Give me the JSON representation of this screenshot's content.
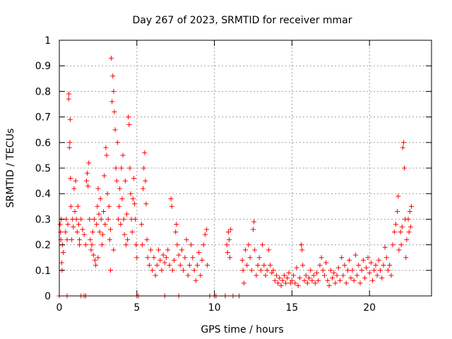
{
  "chart_data": {
    "type": "scatter",
    "title": "Day 267 of 2023, SRMTID for receiver mmar",
    "xlabel": "GPS time / hours",
    "ylabel": "SRMTID / TECUs",
    "xlim": [
      0,
      24
    ],
    "ylim": [
      0,
      1
    ],
    "xticks": [
      0,
      5,
      10,
      15,
      20
    ],
    "xtick_labels": [
      "0",
      "5",
      "10",
      "15",
      "20"
    ],
    "yticks": [
      0,
      0.1,
      0.2,
      0.3,
      0.4,
      0.5,
      0.6,
      0.7,
      0.8,
      0.9,
      1
    ],
    "ytick_labels": [
      "0",
      "0.1",
      "0.2",
      "0.3",
      "0.4",
      "0.5",
      "0.6",
      "0.7",
      "0.8",
      "0.9",
      "1"
    ],
    "grid": true,
    "marker": "+",
    "color": "#ff0000",
    "series": [
      {
        "name": "SRMTID",
        "points": [
          [
            0.05,
            0.28
          ],
          [
            0.08,
            0.25
          ],
          [
            0.1,
            0.22
          ],
          [
            0.12,
            0.3
          ],
          [
            0.15,
            0.13
          ],
          [
            0.18,
            0.1
          ],
          [
            0.2,
            0.2
          ],
          [
            0.25,
            0.17
          ],
          [
            0.4,
            0.25
          ],
          [
            0.45,
            0.3
          ],
          [
            0.5,
            0.22
          ],
          [
            0.55,
            0.28
          ],
          [
            0.6,
            0.77
          ],
          [
            0.62,
            0.79
          ],
          [
            0.65,
            0.58
          ],
          [
            0.68,
            0.6
          ],
          [
            0.7,
            0.69
          ],
          [
            0.72,
            0.46
          ],
          [
            0.75,
            0.35
          ],
          [
            0.8,
            0.22
          ],
          [
            0.85,
            0.3
          ],
          [
            0.9,
            0.27
          ],
          [
            0.95,
            0.42
          ],
          [
            1.0,
            0.33
          ],
          [
            1.05,
            0.45
          ],
          [
            1.1,
            0.3
          ],
          [
            1.15,
            0.25
          ],
          [
            1.2,
            0.35
          ],
          [
            1.25,
            0.28
          ],
          [
            1.3,
            0.22
          ],
          [
            1.4,
            0.3
          ],
          [
            1.5,
            0.26
          ],
          [
            1.6,
            0.24
          ],
          [
            1.7,
            0.2
          ],
          [
            1.75,
            0.45
          ],
          [
            1.8,
            0.48
          ],
          [
            1.85,
            0.43
          ],
          [
            1.9,
            0.52
          ],
          [
            1.95,
            0.3
          ],
          [
            2.0,
            0.22
          ],
          [
            2.05,
            0.18
          ],
          [
            2.1,
            0.2
          ],
          [
            2.15,
            0.25
          ],
          [
            2.2,
            0.16
          ],
          [
            2.25,
            0.3
          ],
          [
            2.3,
            0.14
          ],
          [
            2.35,
            0.12
          ],
          [
            2.4,
            0.28
          ],
          [
            2.45,
            0.35
          ],
          [
            2.5,
            0.42
          ],
          [
            2.55,
            0.32
          ],
          [
            2.6,
            0.25
          ],
          [
            2.65,
            0.38
          ],
          [
            2.7,
            0.3
          ],
          [
            2.75,
            0.2
          ],
          [
            2.8,
            0.24
          ],
          [
            2.85,
            0.33
          ],
          [
            2.9,
            0.47
          ],
          [
            2.95,
            0.28
          ],
          [
            3.0,
            0.58
          ],
          [
            3.05,
            0.55
          ],
          [
            3.1,
            0.4
          ],
          [
            3.15,
            0.3
          ],
          [
            3.2,
            0.35
          ],
          [
            3.25,
            0.22
          ],
          [
            3.3,
            0.26
          ],
          [
            3.35,
            0.93
          ],
          [
            3.4,
            0.76
          ],
          [
            3.45,
            0.86
          ],
          [
            3.5,
            0.8
          ],
          [
            3.55,
            0.72
          ],
          [
            3.6,
            0.65
          ],
          [
            3.65,
            0.5
          ],
          [
            3.7,
            0.45
          ],
          [
            3.75,
            0.6
          ],
          [
            3.8,
            0.3
          ],
          [
            3.85,
            0.35
          ],
          [
            3.9,
            0.42
          ],
          [
            3.95,
            0.28
          ],
          [
            4.0,
            0.5
          ],
          [
            4.05,
            0.38
          ],
          [
            4.1,
            0.55
          ],
          [
            4.15,
            0.3
          ],
          [
            4.2,
            0.24
          ],
          [
            4.25,
            0.45
          ],
          [
            4.3,
            0.2
          ],
          [
            4.35,
            0.32
          ],
          [
            4.4,
            0.22
          ],
          [
            4.45,
            0.7
          ],
          [
            4.5,
            0.67
          ],
          [
            4.55,
            0.5
          ],
          [
            4.6,
            0.4
          ],
          [
            4.65,
            0.3
          ],
          [
            4.7,
            0.25
          ],
          [
            4.75,
            0.38
          ],
          [
            4.8,
            0.46
          ],
          [
            4.85,
            0.36
          ],
          [
            4.9,
            0.3
          ],
          [
            4.95,
            0.2
          ],
          [
            5.0,
            0.15
          ],
          [
            3.3,
            0.1
          ],
          [
            3.5,
            0.18
          ],
          [
            2.5,
            0.15
          ],
          [
            1.3,
            0.2
          ],
          [
            5.3,
            0.28
          ],
          [
            5.35,
            0.2
          ],
          [
            5.4,
            0.42
          ],
          [
            5.45,
            0.5
          ],
          [
            5.5,
            0.56
          ],
          [
            5.55,
            0.45
          ],
          [
            5.6,
            0.36
          ],
          [
            5.65,
            0.22
          ],
          [
            5.7,
            0.15
          ],
          [
            5.8,
            0.12
          ],
          [
            5.9,
            0.18
          ],
          [
            6.0,
            0.1
          ],
          [
            6.1,
            0.15
          ],
          [
            6.2,
            0.08
          ],
          [
            6.3,
            0.12
          ],
          [
            6.4,
            0.18
          ],
          [
            6.5,
            0.14
          ],
          [
            6.6,
            0.1
          ],
          [
            6.7,
            0.16
          ],
          [
            6.8,
            0.13
          ],
          [
            6.9,
            0.15
          ],
          [
            7.0,
            0.18
          ],
          [
            7.1,
            0.12
          ],
          [
            7.2,
            0.38
          ],
          [
            7.25,
            0.35
          ],
          [
            7.3,
            0.1
          ],
          [
            7.4,
            0.14
          ],
          [
            7.5,
            0.25
          ],
          [
            7.55,
            0.28
          ],
          [
            7.6,
            0.2
          ],
          [
            7.7,
            0.16
          ],
          [
            7.8,
            0.12
          ],
          [
            7.9,
            0.18
          ],
          [
            8.0,
            0.1
          ],
          [
            8.1,
            0.15
          ],
          [
            8.2,
            0.22
          ],
          [
            8.3,
            0.08
          ],
          [
            8.4,
            0.12
          ],
          [
            8.5,
            0.2
          ],
          [
            8.6,
            0.15
          ],
          [
            8.7,
            0.1
          ],
          [
            8.8,
            0.06
          ],
          [
            8.9,
            0.12
          ],
          [
            9.0,
            0.17
          ],
          [
            9.1,
            0.08
          ],
          [
            9.2,
            0.14
          ],
          [
            9.3,
            0.2
          ],
          [
            9.4,
            0.24
          ],
          [
            9.5,
            0.26
          ],
          [
            9.55,
            0.12
          ],
          [
            10.8,
            0.2
          ],
          [
            10.85,
            0.17
          ],
          [
            10.9,
            0.25
          ],
          [
            10.95,
            0.22
          ],
          [
            11.0,
            0.15
          ],
          [
            11.05,
            0.26
          ],
          [
            11.8,
            0.14
          ],
          [
            11.85,
            0.1
          ],
          [
            11.9,
            0.05
          ],
          [
            12.0,
            0.18
          ],
          [
            12.1,
            0.12
          ],
          [
            12.2,
            0.2
          ],
          [
            12.3,
            0.15
          ],
          [
            12.4,
            0.1
          ],
          [
            12.5,
            0.26
          ],
          [
            12.55,
            0.29
          ],
          [
            12.6,
            0.18
          ],
          [
            12.7,
            0.08
          ],
          [
            12.8,
            0.12
          ],
          [
            12.9,
            0.15
          ],
          [
            13.0,
            0.1
          ],
          [
            13.1,
            0.2
          ],
          [
            13.2,
            0.12
          ],
          [
            13.3,
            0.08
          ],
          [
            13.4,
            0.1
          ],
          [
            13.5,
            0.18
          ],
          [
            13.6,
            0.12
          ],
          [
            13.7,
            0.09
          ],
          [
            13.8,
            0.1
          ],
          [
            13.9,
            0.06
          ],
          [
            14.0,
            0.08
          ],
          [
            14.1,
            0.05
          ],
          [
            14.2,
            0.07
          ],
          [
            14.3,
            0.04
          ],
          [
            14.4,
            0.06
          ],
          [
            14.5,
            0.08
          ],
          [
            14.6,
            0.05
          ],
          [
            14.7,
            0.07
          ],
          [
            14.8,
            0.09
          ],
          [
            14.9,
            0.05
          ],
          [
            15.0,
            0.06
          ],
          [
            15.1,
            0.08
          ],
          [
            15.2,
            0.05
          ],
          [
            15.3,
            0.11
          ],
          [
            15.4,
            0.04
          ],
          [
            15.5,
            0.07
          ],
          [
            15.6,
            0.2
          ],
          [
            15.65,
            0.18
          ],
          [
            15.7,
            0.12
          ],
          [
            15.8,
            0.06
          ],
          [
            15.9,
            0.08
          ],
          [
            16.0,
            0.05
          ],
          [
            16.1,
            0.07
          ],
          [
            16.2,
            0.1
          ],
          [
            16.3,
            0.06
          ],
          [
            16.4,
            0.08
          ],
          [
            16.5,
            0.05
          ],
          [
            16.6,
            0.09
          ],
          [
            16.7,
            0.06
          ],
          [
            16.8,
            0.12
          ],
          [
            16.9,
            0.15
          ],
          [
            17.0,
            0.1
          ],
          [
            17.1,
            0.08
          ],
          [
            17.2,
            0.13
          ],
          [
            17.3,
            0.06
          ],
          [
            17.4,
            0.04
          ],
          [
            17.5,
            0.1
          ],
          [
            17.6,
            0.07
          ],
          [
            17.7,
            0.09
          ],
          [
            17.8,
            0.05
          ],
          [
            17.9,
            0.08
          ],
          [
            18.0,
            0.11
          ],
          [
            18.1,
            0.06
          ],
          [
            18.2,
            0.15
          ],
          [
            18.3,
            0.08
          ],
          [
            18.4,
            0.12
          ],
          [
            18.5,
            0.05
          ],
          [
            18.6,
            0.1
          ],
          [
            18.7,
            0.14
          ],
          [
            18.8,
            0.07
          ],
          [
            18.9,
            0.1
          ],
          [
            19.0,
            0.06
          ],
          [
            19.1,
            0.16
          ],
          [
            19.2,
            0.08
          ],
          [
            19.3,
            0.12
          ],
          [
            19.4,
            0.05
          ],
          [
            19.5,
            0.1
          ],
          [
            19.6,
            0.14
          ],
          [
            19.7,
            0.07
          ],
          [
            19.8,
            0.11
          ],
          [
            19.9,
            0.15
          ],
          [
            20.0,
            0.09
          ],
          [
            20.1,
            0.13
          ],
          [
            20.2,
            0.06
          ],
          [
            20.3,
            0.1
          ],
          [
            20.4,
            0.12
          ],
          [
            20.5,
            0.08
          ],
          [
            20.6,
            0.14
          ],
          [
            20.7,
            0.1
          ],
          [
            20.8,
            0.07
          ],
          [
            20.9,
            0.12
          ],
          [
            21.0,
            0.19
          ],
          [
            21.1,
            0.15
          ],
          [
            21.2,
            0.1
          ],
          [
            21.3,
            0.12
          ],
          [
            21.4,
            0.08
          ],
          [
            21.5,
            0.2
          ],
          [
            21.6,
            0.25
          ],
          [
            21.7,
            0.28
          ],
          [
            21.8,
            0.33
          ],
          [
            21.85,
            0.39
          ],
          [
            21.9,
            0.18
          ],
          [
            22.0,
            0.25
          ],
          [
            22.05,
            0.2
          ],
          [
            22.1,
            0.27
          ],
          [
            22.15,
            0.58
          ],
          [
            22.2,
            0.6
          ],
          [
            22.25,
            0.5
          ],
          [
            22.3,
            0.3
          ],
          [
            22.35,
            0.15
          ],
          [
            22.4,
            0.22
          ],
          [
            22.5,
            0.3
          ],
          [
            22.55,
            0.25
          ],
          [
            22.6,
            0.33
          ],
          [
            22.65,
            0.27
          ],
          [
            22.7,
            0.35
          ],
          [
            0.0,
            0.0
          ],
          [
            0.5,
            0.0
          ],
          [
            1.4,
            0.0
          ],
          [
            1.6,
            0.0
          ],
          [
            1.7,
            0.0
          ],
          [
            5.0,
            0.0
          ],
          [
            5.1,
            0.0
          ],
          [
            6.8,
            0.0
          ],
          [
            7.7,
            0.0
          ],
          [
            9.7,
            0.0
          ],
          [
            10.0,
            0.0
          ],
          [
            10.1,
            0.0
          ],
          [
            10.7,
            0.0
          ],
          [
            11.2,
            0.0
          ],
          [
            11.6,
            0.0
          ]
        ]
      }
    ]
  }
}
